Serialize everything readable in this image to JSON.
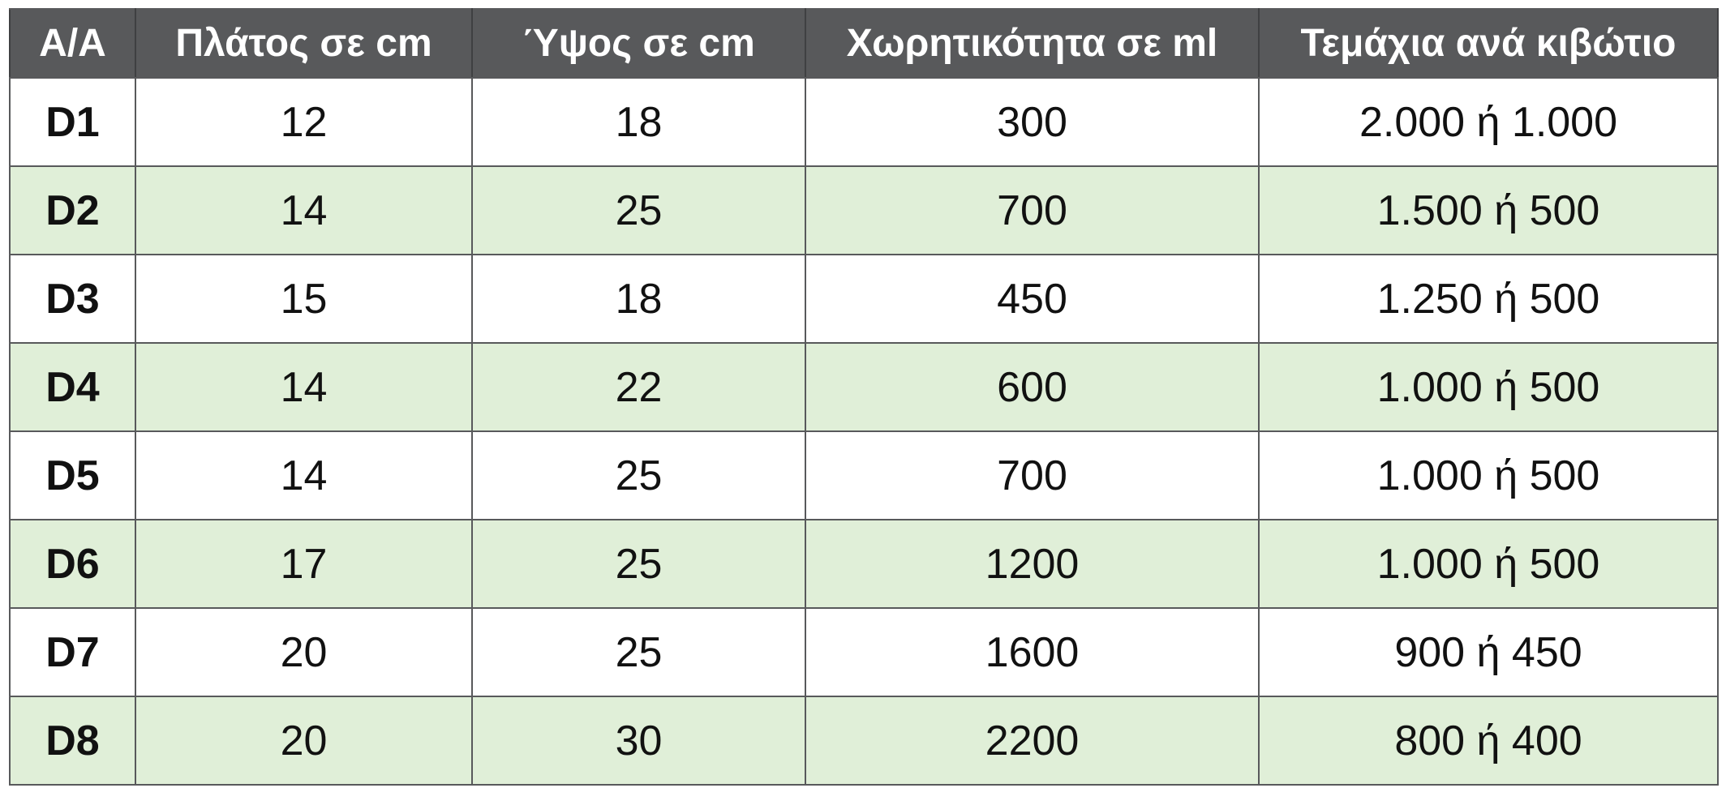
{
  "colors": {
    "header_bg": "#58595b",
    "header_text": "#ffffff",
    "alt_row_bg": "#e0efd8",
    "row_bg": "#ffffff"
  },
  "table": {
    "headers": [
      "A/A",
      "Πλάτος σε cm",
      "Ύψος σε cm",
      "Χωρητικότητα σε ml",
      "Τεμάχια ανά κιβώτιο"
    ],
    "rows": [
      [
        "D1",
        "12",
        "18",
        "300",
        "2.000 ή 1.000"
      ],
      [
        "D2",
        "14",
        "25",
        "700",
        "1.500 ή 500"
      ],
      [
        "D3",
        "15",
        "18",
        "450",
        "1.250 ή 500"
      ],
      [
        "D4",
        "14",
        "22",
        "600",
        "1.000 ή 500"
      ],
      [
        "D5",
        "14",
        "25",
        "700",
        "1.000 ή 500"
      ],
      [
        "D6",
        "17",
        "25",
        "1200",
        "1.000 ή 500"
      ],
      [
        "D7",
        "20",
        "25",
        "1600",
        "900 ή 450"
      ],
      [
        "D8",
        "20",
        "30",
        "2200",
        "800 ή 400"
      ]
    ]
  }
}
